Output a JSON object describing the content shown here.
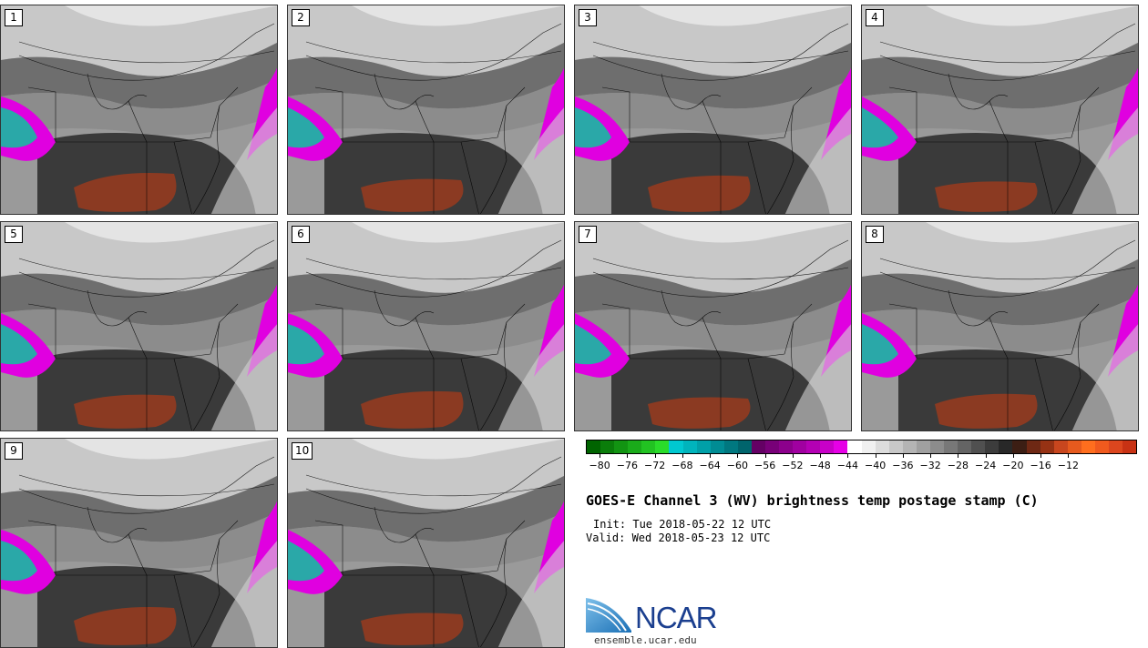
{
  "panels": [
    "1",
    "2",
    "3",
    "4",
    "5",
    "6",
    "7",
    "8",
    "9",
    "10"
  ],
  "colorbar": {
    "colors": [
      "#006400",
      "#0a7d0a",
      "#129412",
      "#1aab1a",
      "#22c322",
      "#2adc2a",
      "#00c8d0",
      "#00b4bc",
      "#00a0a8",
      "#008c94",
      "#007880",
      "#00646c",
      "#640064",
      "#780078",
      "#8c008c",
      "#a000a0",
      "#b400b4",
      "#c800c8",
      "#e600e6",
      "#ffffff",
      "#f0f0f0",
      "#dcdcdc",
      "#c8c8c8",
      "#b4b4b4",
      "#a0a0a0",
      "#8c8c8c",
      "#787878",
      "#646464",
      "#505050",
      "#3c3c3c",
      "#282828",
      "#3c1e14",
      "#6e2814",
      "#963214",
      "#c8461e",
      "#e65a1e",
      "#ff6e1e",
      "#f05a1e",
      "#dc461e",
      "#c83214"
    ],
    "tick_labels": [
      "−80",
      "−76",
      "−72",
      "−68",
      "−64",
      "−60",
      "−56",
      "−52",
      "−48",
      "−44",
      "−40",
      "−36",
      "−32",
      "−28",
      "−24",
      "−20",
      "−16",
      "−12"
    ]
  },
  "title": "GOES-E Channel 3 (WV) brightness temp postage stamp (C)",
  "init": "Init: Tue 2018-05-22 12 UTC",
  "valid": "Valid: Wed 2018-05-23 12 UTC",
  "logo_text": "NCAR",
  "website": "ensemble.ucar.edu",
  "colors": {
    "magenta": "#e000e0",
    "teal": "#2aa8a8",
    "brown": "#8b3a22",
    "dark_gray": "#3a3a3a"
  }
}
